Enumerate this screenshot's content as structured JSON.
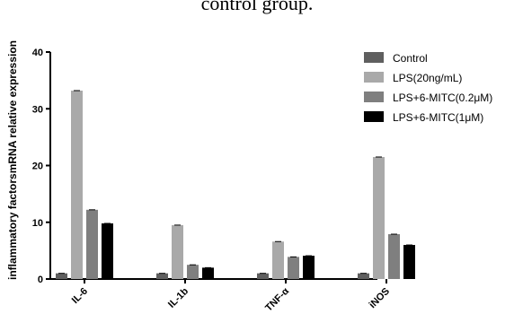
{
  "caption": "control group.",
  "chart_data": {
    "type": "bar",
    "title": "",
    "xlabel": "",
    "ylabel": "inflammatory factorsmRNA relative expression",
    "ylim": [
      0,
      40
    ],
    "yticks": [
      0,
      10,
      20,
      30,
      40
    ],
    "categories": [
      "IL-6",
      "IL-1b",
      "TNF-α",
      "iNOS"
    ],
    "series": [
      {
        "name": "Control",
        "color": "#5f5f5f",
        "values": [
          1.0,
          1.0,
          1.0,
          1.0
        ]
      },
      {
        "name": "LPS(20ng/mL)",
        "color": "#a9a9a9",
        "values": [
          33.2,
          9.5,
          6.6,
          21.5
        ]
      },
      {
        "name": "LPS+6-MITC(0.2μM)",
        "color": "#7f7f7f",
        "values": [
          12.2,
          2.5,
          3.9,
          7.9
        ]
      },
      {
        "name": "LPS+6-MITC(1μM)",
        "color": "#000000",
        "values": [
          9.8,
          2.0,
          4.1,
          6.0
        ]
      }
    ],
    "legend_position": "top-right",
    "grid": false
  }
}
